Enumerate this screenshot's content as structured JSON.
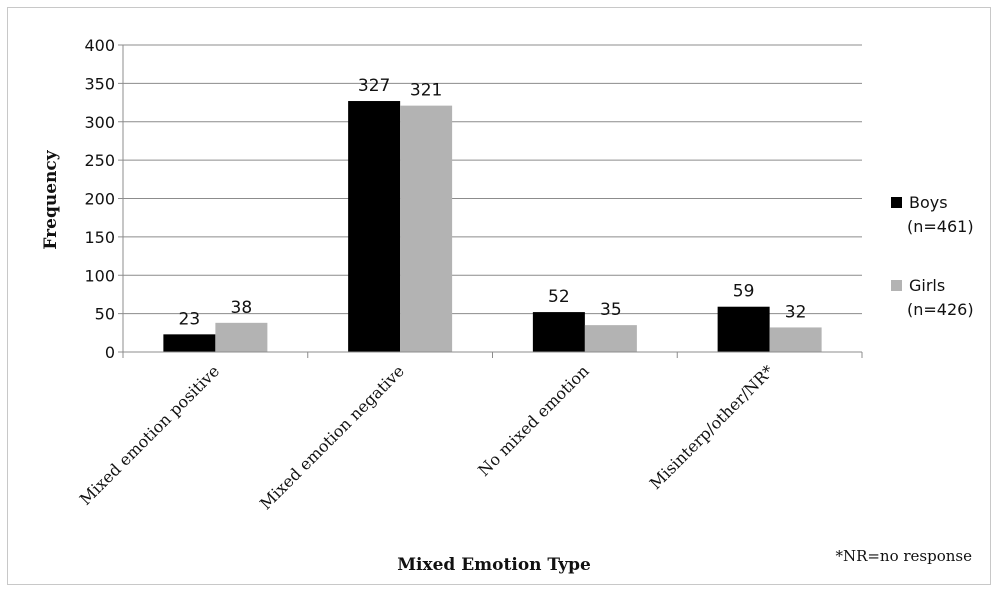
{
  "chart_data": {
    "type": "bar",
    "categories": [
      "Mixed emotion positive",
      "Mixed emotion negative",
      "No mixed emotion",
      "Misinterp/other/NR*"
    ],
    "series": [
      {
        "name": "Boys",
        "legend_line2": "(n=461)",
        "values": [
          23,
          327,
          52,
          59
        ],
        "color": "#000000"
      },
      {
        "name": "Girls",
        "legend_line2": "(n=426)",
        "values": [
          38,
          321,
          35,
          32
        ],
        "color": "#b3b3b3"
      }
    ],
    "xlabel": "Mixed Emotion Type",
    "ylabel": "Frequency",
    "ylim": [
      0,
      400
    ],
    "yticks": [
      0,
      50,
      100,
      150,
      200,
      250,
      300,
      350,
      400
    ],
    "grid": true,
    "legend_position": "right",
    "footnote": "*NR=no response"
  }
}
